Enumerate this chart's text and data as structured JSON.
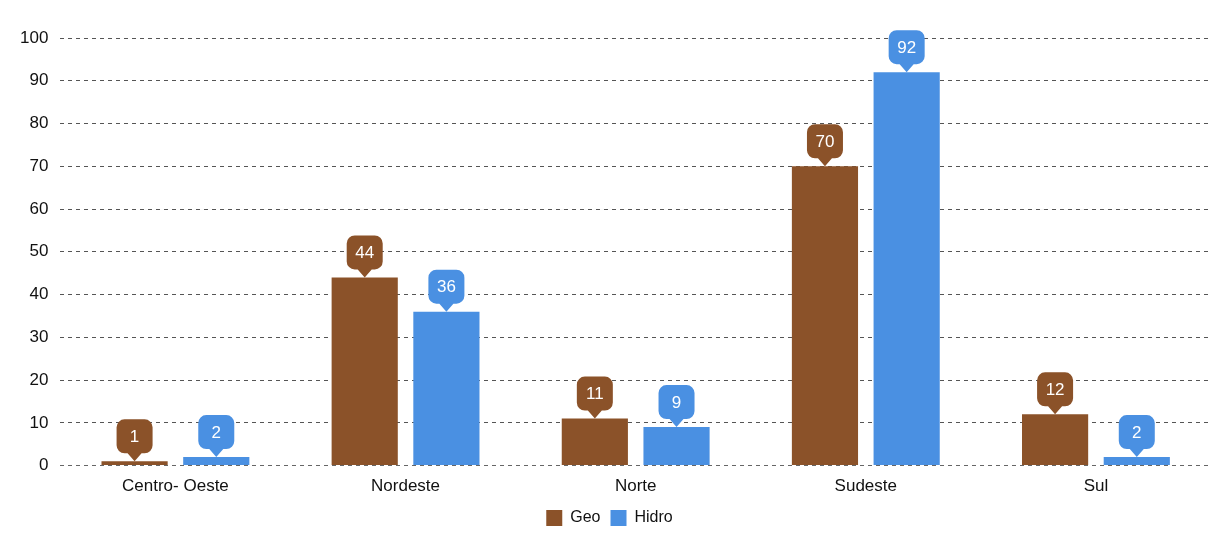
{
  "chart_data": {
    "type": "bar",
    "categories": [
      "Centro- Oeste",
      "Nordeste",
      "Norte",
      "Sudeste",
      "Sul"
    ],
    "series": [
      {
        "name": "Geo",
        "color": "#8b5229",
        "values": [
          1,
          44,
          11,
          70,
          12
        ]
      },
      {
        "name": "Hidro",
        "color": "#4a90e2",
        "values": [
          2,
          36,
          9,
          92,
          2
        ]
      }
    ],
    "ylim": [
      0,
      100
    ],
    "yticks": [
      0,
      10,
      20,
      30,
      40,
      50,
      60,
      70,
      80,
      90,
      100
    ],
    "grid": "y",
    "legend": "bottom",
    "data_labels": true
  }
}
